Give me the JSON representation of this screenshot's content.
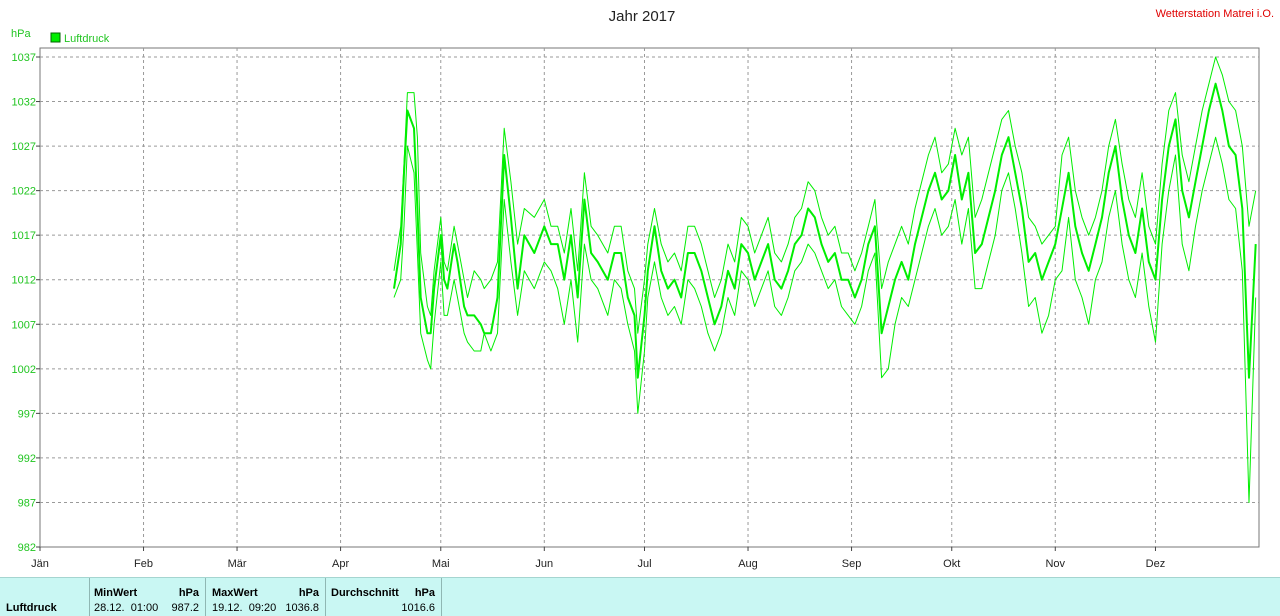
{
  "title": "Jahr 2017",
  "station": "Wetterstation Matrei i.O.",
  "unit": "hPa",
  "legend": {
    "label": "Luftdruck",
    "color": "#00ee00"
  },
  "stats": {
    "row_label": "Luftdruck",
    "min": {
      "header": "MinWert",
      "unit": "hPa",
      "time": "28.12.  01:00",
      "value": "987.2"
    },
    "max": {
      "header": "MaxWert",
      "unit": "hPa",
      "time": "19.12.  09:20",
      "value": "1036.8"
    },
    "avg": {
      "header": "Durchschnitt",
      "unit": "hPa",
      "value": "1016.6"
    }
  },
  "chart_data": {
    "type": "line",
    "title": "Jahr 2017",
    "ylabel": "hPa",
    "ylim": [
      982,
      1037
    ],
    "yticks": [
      982,
      987,
      992,
      997,
      1002,
      1007,
      1012,
      1017,
      1022,
      1027,
      1032,
      1037
    ],
    "xlim": [
      0,
      365
    ],
    "x_unit": "day of year",
    "xticks": [
      {
        "label": "Jän",
        "day": 0
      },
      {
        "label": "Feb",
        "day": 31
      },
      {
        "label": "Mär",
        "day": 59
      },
      {
        "label": "Apr",
        "day": 90
      },
      {
        "label": "Mai",
        "day": 120
      },
      {
        "label": "Jun",
        "day": 151
      },
      {
        "label": "Jul",
        "day": 181
      },
      {
        "label": "Aug",
        "day": 212
      },
      {
        "label": "Sep",
        "day": 243
      },
      {
        "label": "Okt",
        "day": 273
      },
      {
        "label": "Nov",
        "day": 304
      },
      {
        "label": "Dez",
        "day": 334
      }
    ],
    "grid": true,
    "legend_position": "top-left",
    "series": [
      {
        "name": "Luftdruck",
        "role": "max",
        "stroke_width": 1,
        "x": [
          106,
          108,
          109,
          110,
          112,
          113,
          114,
          116,
          117,
          118,
          120,
          121,
          122,
          124,
          125,
          127,
          128,
          130,
          132,
          133,
          135,
          137,
          139,
          141,
          143,
          145,
          148,
          151,
          153,
          155,
          157,
          159,
          161,
          163,
          165,
          167,
          170,
          172,
          174,
          176,
          178,
          179,
          181,
          182,
          184,
          186,
          188,
          190,
          192,
          194,
          196,
          198,
          200,
          202,
          204,
          206,
          208,
          210,
          212,
          214,
          216,
          218,
          220,
          222,
          224,
          226,
          228,
          230,
          232,
          234,
          236,
          238,
          240,
          242,
          244,
          246,
          248,
          250,
          252,
          254,
          256,
          258,
          260,
          262,
          264,
          266,
          268,
          270,
          272,
          274,
          276,
          278,
          280,
          282,
          284,
          286,
          288,
          290,
          292,
          294,
          296,
          298,
          300,
          302,
          304,
          306,
          308,
          310,
          312,
          314,
          316,
          318,
          320,
          322,
          324,
          326,
          328,
          330,
          332,
          334,
          336,
          338,
          340,
          342,
          344,
          346,
          348,
          350,
          352,
          354,
          356,
          358,
          360,
          362,
          364
        ],
        "y": [
          1013,
          1018,
          1025,
          1033,
          1033,
          1028,
          1015,
          1009,
          1008,
          1013,
          1019,
          1014,
          1013,
          1018,
          1016,
          1012,
          1010,
          1013,
          1012,
          1011,
          1012,
          1014,
          1029,
          1023,
          1016,
          1020,
          1019,
          1021,
          1018,
          1018,
          1015,
          1020,
          1013,
          1024,
          1018,
          1017,
          1015,
          1018,
          1018,
          1013,
          1011,
          1006,
          1012,
          1016,
          1020,
          1016,
          1014,
          1015,
          1013,
          1018,
          1018,
          1016,
          1013,
          1010,
          1012,
          1016,
          1014,
          1019,
          1018,
          1015,
          1017,
          1019,
          1015,
          1014,
          1016,
          1019,
          1020,
          1023,
          1022,
          1019,
          1017,
          1018,
          1015,
          1015,
          1013,
          1015,
          1018,
          1021,
          1011,
          1014,
          1016,
          1018,
          1016,
          1020,
          1023,
          1026,
          1028,
          1024,
          1025,
          1029,
          1026,
          1028,
          1019,
          1021,
          1024,
          1027,
          1030,
          1031,
          1027,
          1024,
          1019,
          1018,
          1016,
          1017,
          1018,
          1026,
          1028,
          1022,
          1019,
          1017,
          1019,
          1022,
          1027,
          1030,
          1025,
          1021,
          1019,
          1024,
          1018,
          1016,
          1025,
          1031,
          1033,
          1026,
          1023,
          1027,
          1031,
          1034,
          1037,
          1035,
          1032,
          1031,
          1027,
          1018,
          1022
        ]
      },
      {
        "name": "Luftdruck",
        "role": "mean",
        "stroke_width": 2,
        "x": [
          106,
          108,
          109,
          110,
          112,
          113,
          114,
          116,
          117,
          118,
          120,
          121,
          122,
          124,
          125,
          127,
          128,
          130,
          132,
          133,
          135,
          137,
          139,
          141,
          143,
          145,
          148,
          151,
          153,
          155,
          157,
          159,
          161,
          163,
          165,
          167,
          170,
          172,
          174,
          176,
          178,
          179,
          181,
          182,
          184,
          186,
          188,
          190,
          192,
          194,
          196,
          198,
          200,
          202,
          204,
          206,
          208,
          210,
          212,
          214,
          216,
          218,
          220,
          222,
          224,
          226,
          228,
          230,
          232,
          234,
          236,
          238,
          240,
          242,
          244,
          246,
          248,
          250,
          252,
          254,
          256,
          258,
          260,
          262,
          264,
          266,
          268,
          270,
          272,
          274,
          276,
          278,
          280,
          282,
          284,
          286,
          288,
          290,
          292,
          294,
          296,
          298,
          300,
          302,
          304,
          306,
          308,
          310,
          312,
          314,
          316,
          318,
          320,
          322,
          324,
          326,
          328,
          330,
          332,
          334,
          336,
          338,
          340,
          342,
          344,
          346,
          348,
          350,
          352,
          354,
          356,
          358,
          360,
          362,
          364
        ],
        "y": [
          1011,
          1016,
          1024,
          1031,
          1029,
          1020,
          1010,
          1006,
          1006,
          1011,
          1017,
          1012,
          1011,
          1016,
          1014,
          1009,
          1008,
          1008,
          1007,
          1006,
          1006,
          1010,
          1026,
          1019,
          1011,
          1017,
          1015,
          1018,
          1016,
          1016,
          1012,
          1017,
          1010,
          1021,
          1015,
          1014,
          1012,
          1015,
          1015,
          1010,
          1008,
          1001,
          1008,
          1013,
          1018,
          1013,
          1011,
          1012,
          1010,
          1015,
          1015,
          1013,
          1010,
          1007,
          1009,
          1013,
          1011,
          1016,
          1015,
          1012,
          1014,
          1016,
          1012,
          1011,
          1013,
          1016,
          1017,
          1020,
          1019,
          1016,
          1014,
          1015,
          1012,
          1012,
          1010,
          1012,
          1016,
          1018,
          1006,
          1009,
          1012,
          1014,
          1012,
          1016,
          1019,
          1022,
          1024,
          1021,
          1022,
          1026,
          1021,
          1024,
          1015,
          1016,
          1019,
          1022,
          1026,
          1028,
          1024,
          1020,
          1014,
          1015,
          1012,
          1014,
          1016,
          1020,
          1024,
          1018,
          1015,
          1013,
          1016,
          1019,
          1024,
          1027,
          1021,
          1017,
          1015,
          1020,
          1014,
          1012,
          1021,
          1027,
          1030,
          1022,
          1019,
          1023,
          1027,
          1031,
          1034,
          1031,
          1027,
          1026,
          1020,
          1001,
          1016
        ]
      },
      {
        "name": "Luftdruck",
        "role": "min",
        "stroke_width": 1,
        "x": [
          106,
          108,
          109,
          110,
          112,
          113,
          114,
          116,
          117,
          118,
          120,
          121,
          122,
          124,
          125,
          127,
          128,
          130,
          132,
          133,
          135,
          137,
          139,
          141,
          143,
          145,
          148,
          151,
          153,
          155,
          157,
          159,
          161,
          163,
          165,
          167,
          170,
          172,
          174,
          176,
          178,
          179,
          181,
          182,
          184,
          186,
          188,
          190,
          192,
          194,
          196,
          198,
          200,
          202,
          204,
          206,
          208,
          210,
          212,
          214,
          216,
          218,
          220,
          222,
          224,
          226,
          228,
          230,
          232,
          234,
          236,
          238,
          240,
          242,
          244,
          246,
          248,
          250,
          252,
          254,
          256,
          258,
          260,
          262,
          264,
          266,
          268,
          270,
          272,
          274,
          276,
          278,
          280,
          282,
          284,
          286,
          288,
          290,
          292,
          294,
          296,
          298,
          300,
          302,
          304,
          306,
          308,
          310,
          312,
          314,
          316,
          318,
          320,
          322,
          324,
          326,
          328,
          330,
          332,
          334,
          336,
          338,
          340,
          342,
          344,
          346,
          348,
          350,
          352,
          354,
          356,
          358,
          360,
          362,
          364
        ],
        "y": [
          1010,
          1012,
          1018,
          1027,
          1024,
          1015,
          1006,
          1003,
          1002,
          1007,
          1014,
          1008,
          1008,
          1012,
          1010,
          1006,
          1005,
          1004,
          1004,
          1006,
          1004,
          1006,
          1021,
          1014,
          1008,
          1013,
          1011,
          1014,
          1013,
          1011,
          1007,
          1012,
          1005,
          1016,
          1012,
          1011,
          1008,
          1012,
          1011,
          1007,
          1004,
          997,
          1004,
          1010,
          1014,
          1010,
          1008,
          1009,
          1007,
          1012,
          1011,
          1009,
          1006,
          1004,
          1006,
          1010,
          1008,
          1013,
          1012,
          1009,
          1011,
          1013,
          1009,
          1008,
          1010,
          1013,
          1014,
          1016,
          1015,
          1013,
          1011,
          1012,
          1009,
          1008,
          1007,
          1009,
          1013,
          1015,
          1001,
          1002,
          1007,
          1010,
          1009,
          1012,
          1015,
          1018,
          1020,
          1017,
          1018,
          1021,
          1016,
          1020,
          1011,
          1011,
          1014,
          1017,
          1022,
          1024,
          1020,
          1015,
          1009,
          1010,
          1006,
          1008,
          1012,
          1013,
          1019,
          1012,
          1010,
          1007,
          1012,
          1014,
          1019,
          1022,
          1016,
          1012,
          1010,
          1015,
          1009,
          1005,
          1016,
          1022,
          1026,
          1016,
          1013,
          1018,
          1022,
          1025,
          1028,
          1025,
          1021,
          1020,
          1013,
          987,
          1010
        ]
      }
    ]
  }
}
